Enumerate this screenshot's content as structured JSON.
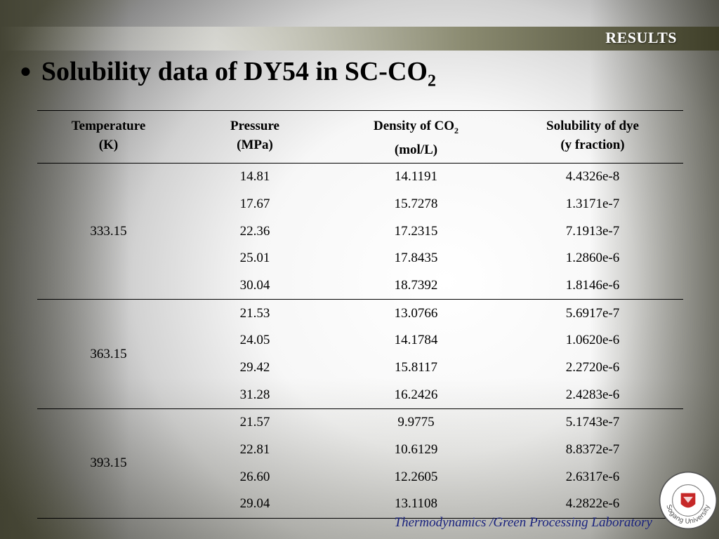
{
  "header": {
    "section_label": "RESULTS"
  },
  "slide": {
    "bullet": "●",
    "title_main": "Solubility data of DY54 in SC-CO",
    "title_sub": "2"
  },
  "table": {
    "headers": [
      {
        "line1": "Temperature",
        "sub": "",
        "line2": "(K)"
      },
      {
        "line1": "Pressure",
        "sub": "",
        "line2": "(MPa)"
      },
      {
        "line1": "Density of CO",
        "sub": "2",
        "line2": "(mol/L)"
      },
      {
        "line1": "Solubility of dye",
        "sub": "",
        "line2": "(y fraction)"
      }
    ],
    "groups": [
      {
        "temperature": "333.15",
        "rows": [
          {
            "pressure": "14.81",
            "density": "14.1191",
            "solubility": "4.4326e-8"
          },
          {
            "pressure": "17.67",
            "density": "15.7278",
            "solubility": "1.3171e-7"
          },
          {
            "pressure": "22.36",
            "density": "17.2315",
            "solubility": "7.1913e-7"
          },
          {
            "pressure": "25.01",
            "density": "17.8435",
            "solubility": "1.2860e-6"
          },
          {
            "pressure": "30.04",
            "density": "18.7392",
            "solubility": "1.8146e-6"
          }
        ]
      },
      {
        "temperature": "363.15",
        "rows": [
          {
            "pressure": "21.53",
            "density": "13.0766",
            "solubility": "5.6917e-7"
          },
          {
            "pressure": "24.05",
            "density": "14.1784",
            "solubility": "1.0620e-6"
          },
          {
            "pressure": "29.42",
            "density": "15.8117",
            "solubility": "2.2720e-6"
          },
          {
            "pressure": "31.28",
            "density": "16.2426",
            "solubility": "2.4283e-6"
          }
        ]
      },
      {
        "temperature": "393.15",
        "rows": [
          {
            "pressure": "21.57",
            "density": "9.9775",
            "solubility": "5.1743e-7"
          },
          {
            "pressure": "22.81",
            "density": "10.6129",
            "solubility": "8.8372e-7"
          },
          {
            "pressure": "26.60",
            "density": "12.2605",
            "solubility": "2.6317e-6"
          },
          {
            "pressure": "29.04",
            "density": "13.1108",
            "solubility": "4.2822e-6"
          }
        ]
      }
    ]
  },
  "footer": {
    "lab_name": "Thermodynamics /Green Processing Laboratory"
  },
  "logo": {
    "icon": "university-seal-icon",
    "text": "Sogang University",
    "color": "#c62828"
  },
  "colors": {
    "banner_dark": "#3e3e28",
    "footer_text": "#1a237e",
    "accent_red": "#c62828"
  }
}
